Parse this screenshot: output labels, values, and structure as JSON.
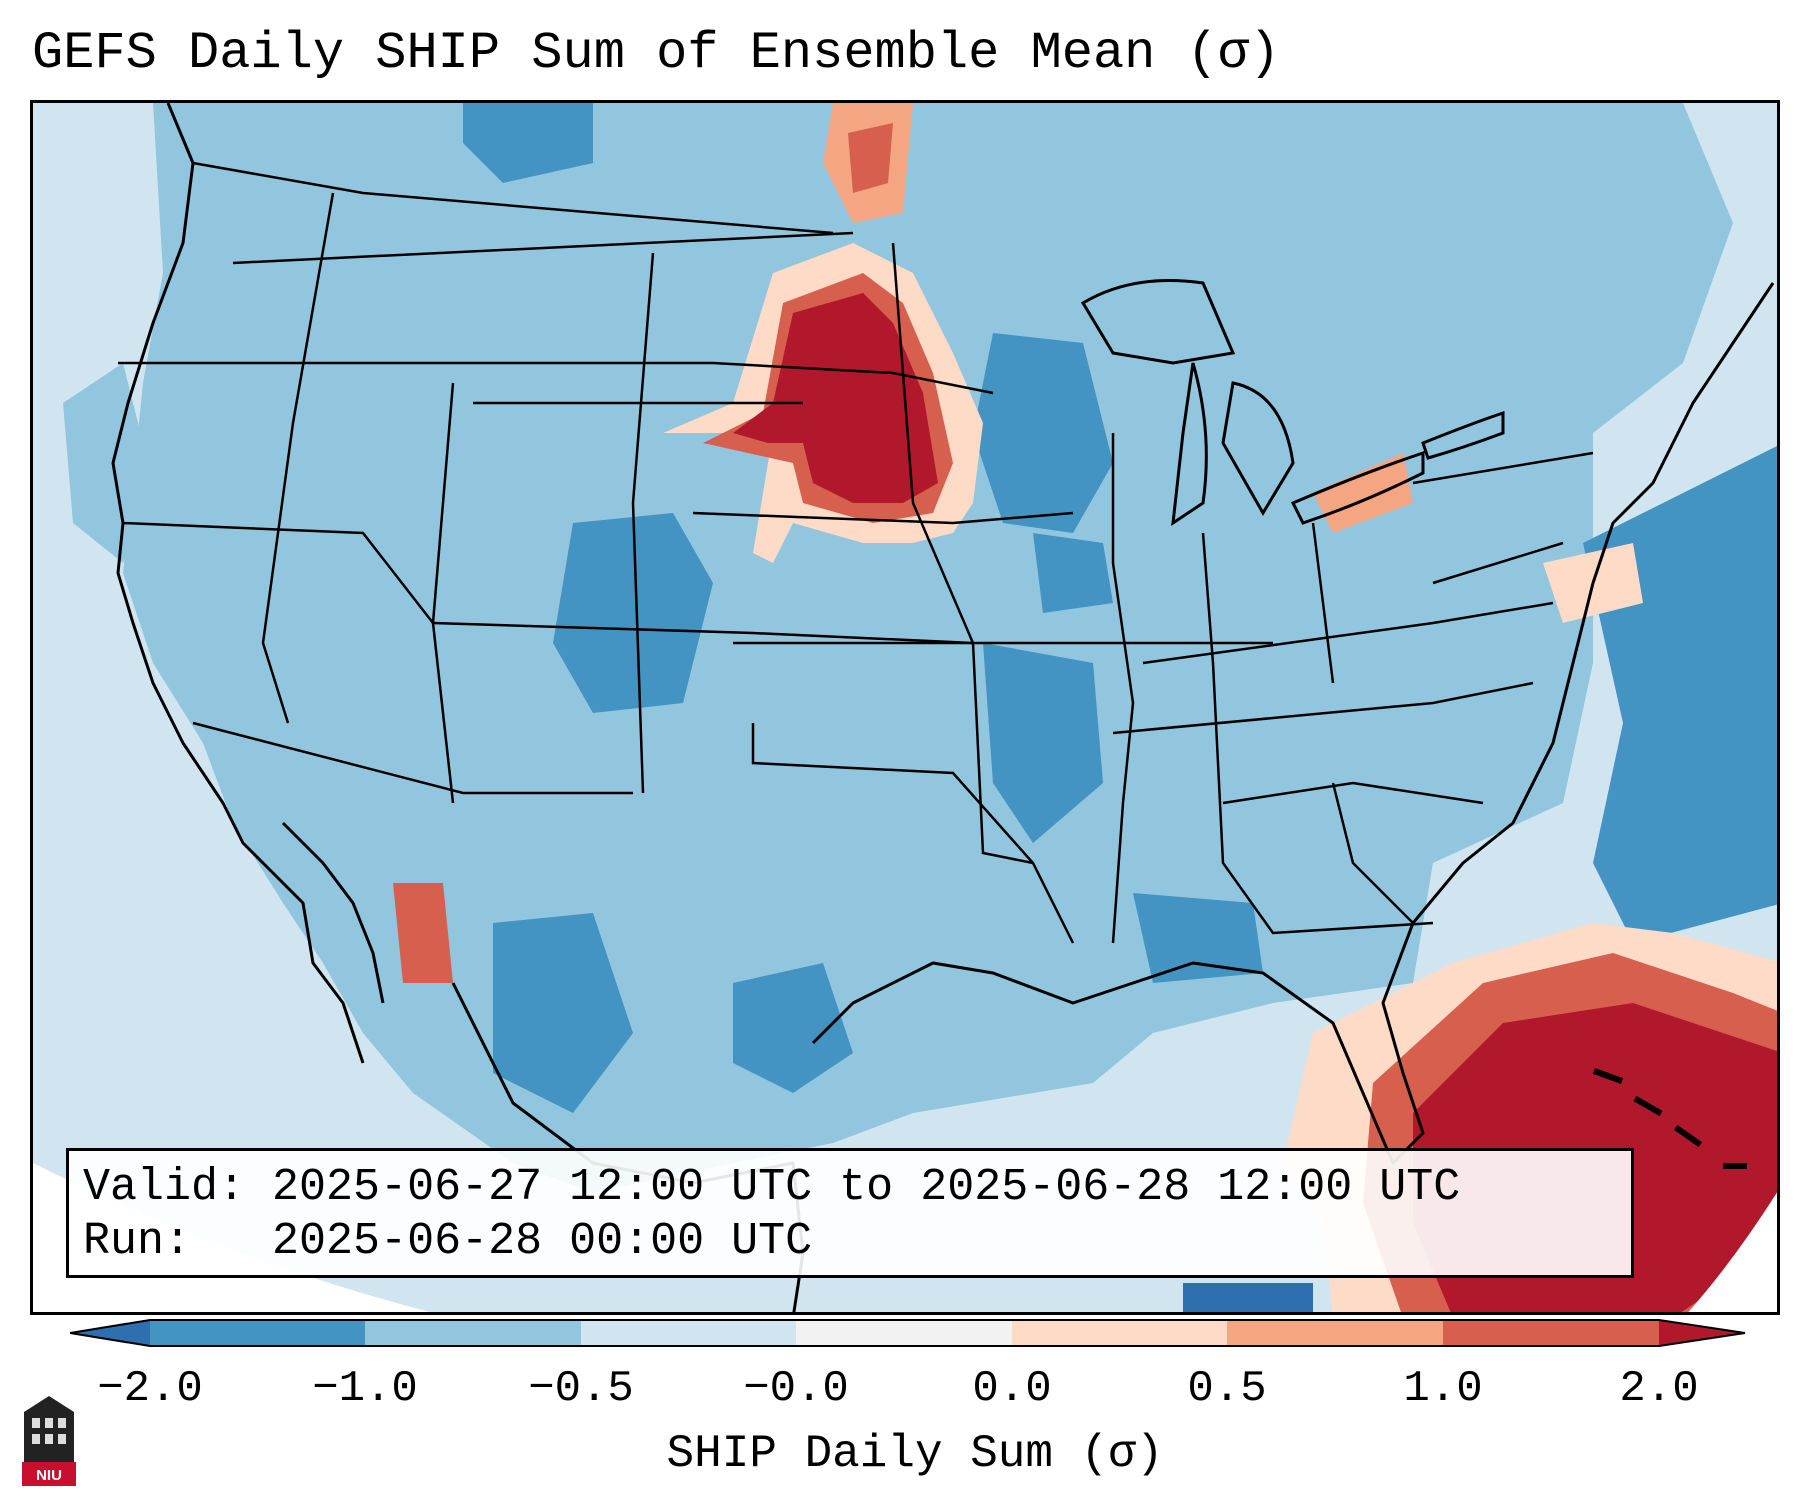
{
  "title": "GEFS Daily SHIP Sum of Ensemble Mean (σ)",
  "valid_label": "Valid:",
  "valid_start": "2025-06-27 12:00 UTC",
  "valid_to": "to",
  "valid_end": "2025-06-28 12:00 UTC",
  "run_label": "Run:",
  "run_time": "2025-06-28 00:00 UTC",
  "colorbar": {
    "label": "SHIP Daily Sum (σ)",
    "ticks": [
      "−2.0",
      "−1.0",
      "−0.5",
      "−0.0",
      "0.0",
      "0.5",
      "1.0",
      "2.0"
    ],
    "colors": [
      "#2e6fb0",
      "#4393c3",
      "#92c5de",
      "#d1e5f0",
      "#f2f2f2",
      "#fddbc7",
      "#f4a582",
      "#d6604d",
      "#b2182b"
    ]
  },
  "logo_text": "NIU"
}
